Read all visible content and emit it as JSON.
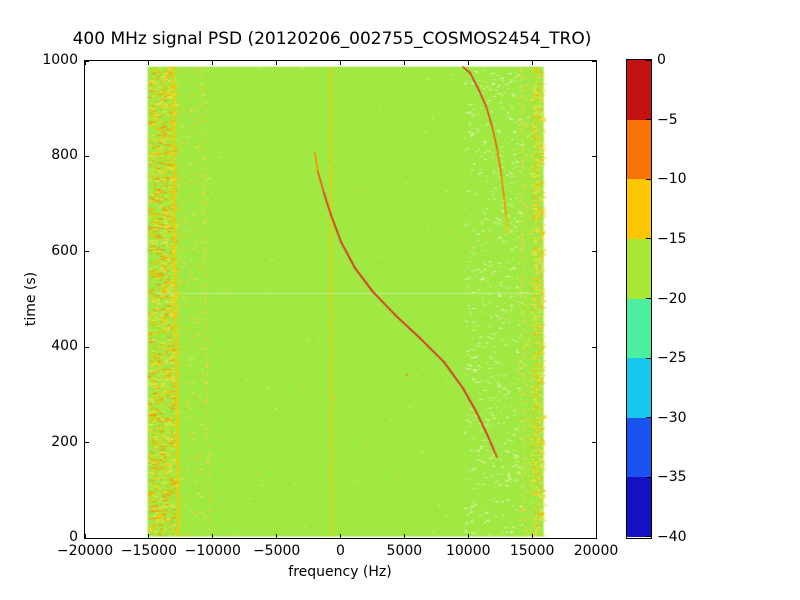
{
  "chart_data": {
    "type": "heatmap",
    "title": "400 MHz signal PSD (20120206_002755_COSMOS2454_TRO)",
    "xlabel": "frequency (Hz)",
    "ylabel": "time (s)",
    "xlim": [
      -20000,
      20000
    ],
    "ylim": [
      0,
      1000
    ],
    "x_ticks": [
      -20000,
      -15000,
      -10000,
      -5000,
      0,
      5000,
      10000,
      15000,
      20000
    ],
    "y_ticks": [
      0,
      200,
      400,
      600,
      800,
      1000
    ],
    "grid": false,
    "legend": null,
    "colorbar": {
      "position": "right",
      "ticks": [
        0,
        -5,
        -10,
        -15,
        -20,
        -25,
        -30,
        -35,
        -40
      ],
      "bands": [
        {
          "from": 0,
          "to": -5,
          "color": "#c41111"
        },
        {
          "from": -5,
          "to": -10,
          "color": "#f97306"
        },
        {
          "from": -10,
          "to": -15,
          "color": "#fdc700"
        },
        {
          "from": -15,
          "to": -20,
          "color": "#a8e832"
        },
        {
          "from": -20,
          "to": -25,
          "color": "#4aefa0"
        },
        {
          "from": -25,
          "to": -30,
          "color": "#18c8f0"
        },
        {
          "from": -30,
          "to": -35,
          "color": "#1a53f0"
        },
        {
          "from": -35,
          "to": -40,
          "color": "#1212c4"
        }
      ]
    },
    "colors": {
      "figure_background": "#ffffff",
      "no_data_background": "#ffffff",
      "data_background": "#a0e842",
      "axis": "#000000"
    },
    "data_extent": {
      "freq_min": -15100,
      "freq_max": 15900,
      "time_min": 3,
      "time_max": 988
    },
    "features": {
      "horizontal_light_line": {
        "time": 514,
        "color": "#c8f292"
      },
      "vertical_lines": [
        {
          "name": "narrowband-line-left-strong",
          "freq_top": -13200,
          "freq_bottom": -12750,
          "width": 2,
          "color": "#ffc800",
          "dash": null,
          "wobble": 0.6
        },
        {
          "name": "narrowband-line-left-faint",
          "freq_top": -10950,
          "freq_bottom": -10250,
          "width": 1,
          "color": "#ffd040",
          "dash": [
            4,
            5
          ],
          "wobble": 0.5
        },
        {
          "name": "narrowband-line-center",
          "freq_top": -800,
          "freq_bottom": -730,
          "width": 1.4,
          "color": "#ffc800",
          "dash": null,
          "wobble": 0.5
        },
        {
          "name": "narrowband-line-right-faint",
          "freq_top": 14150,
          "freq_bottom": 14400,
          "width": 1,
          "color": "#ffd040",
          "dash": [
            5,
            4
          ],
          "wobble": 0.5
        }
      ],
      "speckle_bands": [
        {
          "name": "left-edge-noise",
          "freq_min": -15100,
          "freq_max": -13000,
          "count": 1600,
          "len_min": 1.5,
          "len_max": 5,
          "colors": [
            "#ffc800",
            "#ffaf00",
            "#ff9100",
            "#d9ee3a",
            "#ffe14a"
          ]
        },
        {
          "name": "left-sparse-noise",
          "freq_min": -13000,
          "freq_max": -10400,
          "count": 300,
          "len_min": 1,
          "len_max": 3.5,
          "colors": [
            "#ffd24a",
            "#ffc800",
            "#e8ee4a"
          ]
        },
        {
          "name": "right-edge-noise",
          "freq_min": 14900,
          "freq_max": 15900,
          "count": 900,
          "len_min": 1,
          "len_max": 4,
          "colors": [
            "#ffc800",
            "#ffb400",
            "#ffe14a",
            "#e0ee40"
          ]
        },
        {
          "name": "right-mid-noise",
          "freq_min": 13900,
          "freq_max": 14900,
          "count": 150,
          "len_min": 1,
          "len_max": 3,
          "colors": [
            "#ffd24a",
            "#e8ee4a"
          ]
        },
        {
          "name": "pale-noise-band",
          "freq_min": 9600,
          "freq_max": 14100,
          "count": 650,
          "len_min": 1,
          "len_max": 4,
          "colors": [
            "#c8f08c",
            "#d6f7a2",
            "#e2fbbb"
          ]
        },
        {
          "name": "global-sprinkle",
          "freq_min": -15100,
          "freq_max": 15900,
          "count": 280,
          "len_min": 1,
          "len_max": 2.5,
          "colors": [
            "#c8ee50",
            "#ffd24a",
            "#eaf06a"
          ]
        }
      ],
      "curves": [
        {
          "name": "doppler-track-main",
          "width": 1.7,
          "points": [
            [
              -1996,
              807
            ],
            [
              -1761,
              767
            ],
            [
              -1292,
              723
            ],
            [
              -744,
              677
            ],
            [
              39,
              621
            ],
            [
              1135,
              566
            ],
            [
              2543,
              516
            ],
            [
              4265,
              468
            ],
            [
              6222,
              419
            ],
            [
              8100,
              369
            ],
            [
              9587,
              314
            ],
            [
              10682,
              262
            ],
            [
              11464,
              218
            ],
            [
              12012,
              184
            ],
            [
              12247,
              170
            ]
          ],
          "colors": [
            "#ff8c00",
            "#f25616",
            "#e23232",
            "#dc2828",
            "#dc2828",
            "#dc2828",
            "#dc2828",
            "#dc2828",
            "#dc2828",
            "#dc2828",
            "#dc2828",
            "#dc2828",
            "#dc2828",
            "#e8402a",
            "#f07030"
          ]
        },
        {
          "name": "doppler-track-second-pass",
          "width": 1.6,
          "points": [
            [
              9587,
              988
            ],
            [
              10135,
              975
            ],
            [
              10761,
              943
            ],
            [
              11387,
              906
            ],
            [
              11856,
              864
            ],
            [
              12247,
              818
            ],
            [
              12560,
              767
            ],
            [
              12795,
              717
            ],
            [
              12951,
              677
            ],
            [
              13030,
              662
            ],
            [
              13070,
              650
            ],
            [
              13110,
              639
            ]
          ],
          "colors": [
            "#e03028",
            "#e03028",
            "#e13426",
            "#e8481c",
            "#ef5c10",
            "#f56c08",
            "#f97d04",
            "#fb9400",
            "#fdac00",
            "#fdc000",
            "#fdc800",
            "#fdc800"
          ]
        }
      ],
      "dots": [
        {
          "freq": 5200,
          "time": 342,
          "color": "#ff9100",
          "size": 2
        }
      ]
    }
  }
}
